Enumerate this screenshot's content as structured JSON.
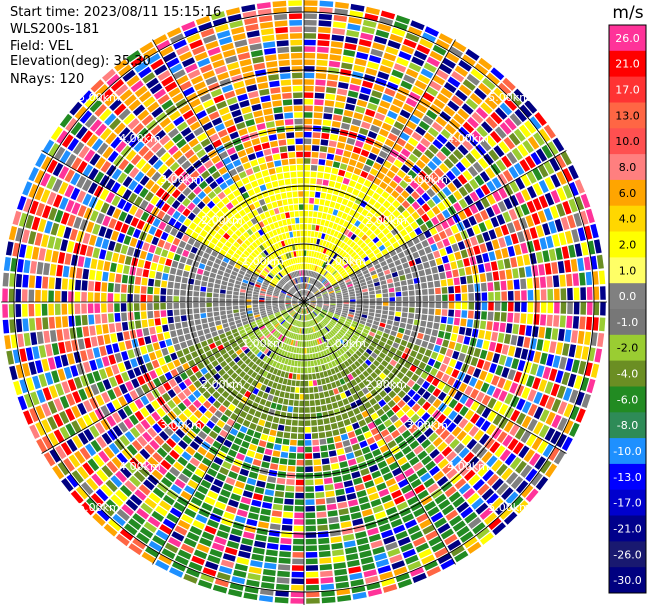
{
  "header": {
    "start_time": "Start time: 2023/08/11 15:15:16",
    "instrument": "WLS200s-181",
    "field": "Field: VEL",
    "elevation": "Elevation(deg): 35.30",
    "nrays": "NRays: 120"
  },
  "chart_data": {
    "type": "heatmap",
    "subtype": "ppi-polar",
    "field": "VEL",
    "unit": "m/s",
    "range_rings_km": [
      1.0,
      2.0,
      3.0,
      4.0,
      5.0
    ],
    "ring_labels": [
      "1.00km",
      "2.00km",
      "3.00km",
      "4.00km",
      "5.00km"
    ],
    "nrays": 120,
    "colorbar": {
      "label": "m/s",
      "ticks": [
        "26.0",
        "21.0",
        "17.0",
        "13.0",
        "10.0",
        "8.0",
        "6.0",
        "4.0",
        "2.0",
        "1.0",
        "0.0",
        "-1.0",
        "-2.0",
        "-4.0",
        "-6.0",
        "-8.0",
        "-10.0",
        "-13.0",
        "-17.0",
        "-21.0",
        "-26.0",
        "-30.0"
      ],
      "colors": [
        "#ff3399",
        "#ff0000",
        "#ff3333",
        "#ff6644",
        "#ff5050",
        "#ff7f7f",
        "#ffa500",
        "#ffd700",
        "#ffff00",
        "#ffff66",
        "#808080",
        "#777777",
        "#9acd32",
        "#6b8e23",
        "#228b22",
        "#2e8b57",
        "#1e90ff",
        "#0000ff",
        "#0000cd",
        "#00008b",
        "#191970",
        "#000080"
      ]
    },
    "grid": true
  }
}
